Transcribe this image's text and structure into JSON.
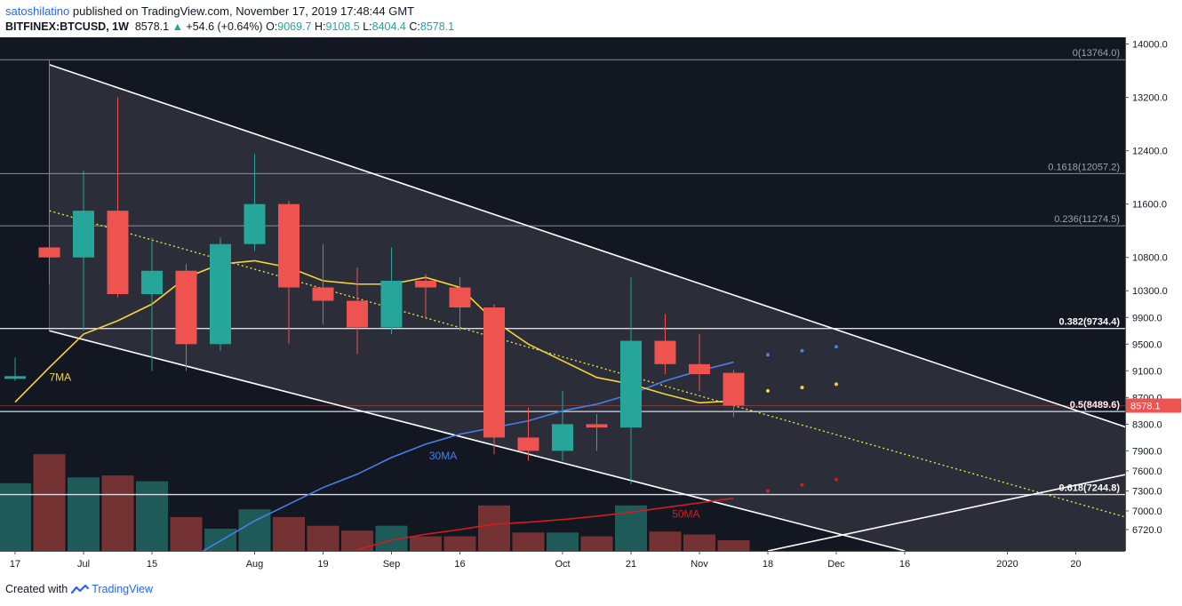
{
  "header": {
    "author": "satoshilatino",
    "published_text": "published on TradingView.com, November 17, 2019 17:48:44 GMT",
    "symbol": "BITFINEX:BTCUSD, 1W",
    "last_price": "8578.1",
    "change": "+54.6 (+0.64%)",
    "open_label": "O:",
    "open": "9069.7",
    "high_label": "H:",
    "high": "9108.5",
    "low_label": "L:",
    "low": "8404.4",
    "close_label": "C:",
    "close": "8578.1"
  },
  "footer": {
    "created_with": "Created with",
    "brand": "TradingView",
    "brand_icon": "tradingview-logo-icon"
  },
  "colors": {
    "background": "#131722",
    "up": "#26a69a",
    "down": "#ef5350",
    "ma7": "#f5d43a",
    "ma30": "#4a7ee8",
    "ma50": "#d01d1d",
    "price_tag": "#ef5350"
  },
  "chart_data": {
    "type": "candlestick",
    "ylim": [
      6400,
      14100
    ],
    "price_ticks": [
      14000,
      13200,
      12400,
      11600,
      10800,
      10300,
      9900,
      9500,
      9100,
      8700,
      8300,
      7900,
      7600,
      7300,
      7000,
      6720
    ],
    "price_tick_labels": [
      "14000.0",
      "13200.0",
      "12400.0",
      "11600.0",
      "10800.0",
      "10300.0",
      "9900.0",
      "9500.0",
      "9100.0",
      "8700.0",
      "8300.0",
      "7900.0",
      "7600.0",
      "7300.0",
      "7000.0",
      "6720.0"
    ],
    "x_ticks": [
      {
        "label": "17",
        "week": 0
      },
      {
        "label": "Jul",
        "week": 2
      },
      {
        "label": "15",
        "week": 4
      },
      {
        "label": "Aug",
        "week": 7
      },
      {
        "label": "19",
        "week": 9
      },
      {
        "label": "Sep",
        "week": 11
      },
      {
        "label": "16",
        "week": 13
      },
      {
        "label": "Oct",
        "week": 16
      },
      {
        "label": "21",
        "week": 18
      },
      {
        "label": "Nov",
        "week": 20
      },
      {
        "label": "18",
        "week": 22
      },
      {
        "label": "Dec",
        "week": 24
      },
      {
        "label": "16",
        "week": 26
      },
      {
        "label": "2020",
        "week": 29
      },
      {
        "label": "20",
        "week": 31
      }
    ],
    "candles": [
      {
        "o": 8980,
        "h": 9300,
        "l": 8950,
        "c": 9020
      },
      {
        "o": 10950,
        "h": 13764,
        "l": 10400,
        "c": 10800
      },
      {
        "o": 10800,
        "h": 12100,
        "l": 9700,
        "c": 11500
      },
      {
        "o": 11500,
        "h": 13200,
        "l": 10200,
        "c": 10250
      },
      {
        "o": 10250,
        "h": 11100,
        "l": 9100,
        "c": 10600
      },
      {
        "o": 10600,
        "h": 10700,
        "l": 9100,
        "c": 9500
      },
      {
        "o": 9500,
        "h": 11100,
        "l": 9400,
        "c": 11000
      },
      {
        "o": 11000,
        "h": 12350,
        "l": 10900,
        "c": 11600
      },
      {
        "o": 11600,
        "h": 11650,
        "l": 9500,
        "c": 10350
      },
      {
        "o": 10350,
        "h": 11000,
        "l": 9800,
        "c": 10150
      },
      {
        "o": 10150,
        "h": 10650,
        "l": 9350,
        "c": 9750
      },
      {
        "o": 9750,
        "h": 10950,
        "l": 9650,
        "c": 10450
      },
      {
        "o": 10450,
        "h": 10550,
        "l": 9900,
        "c": 10350
      },
      {
        "o": 10350,
        "h": 10500,
        "l": 9700,
        "c": 10050
      },
      {
        "o": 10050,
        "h": 10100,
        "l": 7850,
        "c": 8100
      },
      {
        "o": 8100,
        "h": 8550,
        "l": 7750,
        "c": 7900
      },
      {
        "o": 7900,
        "h": 8800,
        "l": 7750,
        "c": 8300
      },
      {
        "o": 8300,
        "h": 8450,
        "l": 7900,
        "c": 8250
      },
      {
        "o": 8250,
        "h": 10500,
        "l": 7400,
        "c": 9550
      },
      {
        "o": 9550,
        "h": 9950,
        "l": 9050,
        "c": 9200
      },
      {
        "o": 9200,
        "h": 9650,
        "l": 8800,
        "c": 9050
      },
      {
        "o": 9069.7,
        "h": 9108.5,
        "l": 8404.4,
        "c": 8578.1
      }
    ],
    "volume": [
      {
        "v": 0.7,
        "up": true
      },
      {
        "v": 1.0,
        "up": false
      },
      {
        "v": 0.76,
        "up": true
      },
      {
        "v": 0.78,
        "up": false
      },
      {
        "v": 0.72,
        "up": true
      },
      {
        "v": 0.35,
        "up": false
      },
      {
        "v": 0.23,
        "up": true
      },
      {
        "v": 0.43,
        "up": true
      },
      {
        "v": 0.35,
        "up": false
      },
      {
        "v": 0.26,
        "up": false
      },
      {
        "v": 0.21,
        "up": false
      },
      {
        "v": 0.26,
        "up": true
      },
      {
        "v": 0.15,
        "up": false
      },
      {
        "v": 0.15,
        "up": false
      },
      {
        "v": 0.47,
        "up": false
      },
      {
        "v": 0.19,
        "up": false
      },
      {
        "v": 0.19,
        "up": true
      },
      {
        "v": 0.15,
        "up": false
      },
      {
        "v": 0.47,
        "up": true
      },
      {
        "v": 0.2,
        "up": false
      },
      {
        "v": 0.17,
        "up": false
      },
      {
        "v": 0.11,
        "up": false
      }
    ],
    "ma7": {
      "label": "7MA",
      "points": [
        [
          0,
          8630
        ],
        [
          1,
          9150
        ],
        [
          2,
          9650
        ],
        [
          3,
          9850
        ],
        [
          4,
          10100
        ],
        [
          5,
          10500
        ],
        [
          6,
          10700
        ],
        [
          7,
          10750
        ],
        [
          8,
          10650
        ],
        [
          9,
          10450
        ],
        [
          10,
          10400
        ],
        [
          11,
          10400
        ],
        [
          12,
          10500
        ],
        [
          13,
          10350
        ],
        [
          14,
          9850
        ],
        [
          15,
          9500
        ],
        [
          16,
          9250
        ],
        [
          17,
          9000
        ],
        [
          18,
          8900
        ],
        [
          19,
          8750
        ],
        [
          20,
          8620
        ],
        [
          21,
          8650
        ]
      ],
      "forecast": [
        [
          22,
          8800
        ],
        [
          23,
          8850
        ],
        [
          24,
          8900
        ]
      ]
    },
    "ma30": {
      "label": "30MA",
      "points": [
        [
          5.5,
          6400
        ],
        [
          6,
          6550
        ],
        [
          7,
          6850
        ],
        [
          8,
          7100
        ],
        [
          9,
          7350
        ],
        [
          10,
          7550
        ],
        [
          11,
          7800
        ],
        [
          12,
          8000
        ],
        [
          13,
          8150
        ],
        [
          14,
          8250
        ],
        [
          15,
          8350
        ],
        [
          16,
          8500
        ],
        [
          17,
          8600
        ],
        [
          18,
          8750
        ],
        [
          19,
          8950
        ],
        [
          20,
          9100
        ],
        [
          21,
          9230
        ]
      ],
      "forecast": [
        [
          22,
          9340
        ],
        [
          23,
          9400
        ],
        [
          24,
          9460
        ]
      ]
    },
    "ma50": {
      "label": "50MA",
      "points": [
        [
          10,
          6420
        ],
        [
          11,
          6560
        ],
        [
          12,
          6650
        ],
        [
          13,
          6720
        ],
        [
          14,
          6800
        ],
        [
          15,
          6830
        ],
        [
          16,
          6870
        ],
        [
          17,
          6920
        ],
        [
          18,
          6980
        ],
        [
          19,
          7050
        ],
        [
          20,
          7120
        ],
        [
          21,
          7190
        ]
      ],
      "forecast": [
        [
          22,
          7300
        ],
        [
          23,
          7390
        ],
        [
          24,
          7470
        ]
      ]
    },
    "fibonacci": [
      {
        "label": "0(13764.0)",
        "price": 13764.0,
        "bold": false
      },
      {
        "label": "0.1618(12057.2)",
        "price": 12057.2,
        "bold": false
      },
      {
        "label": "0.236(11274.5)",
        "price": 11274.5,
        "bold": false
      },
      {
        "label": "0.382(9734.4)",
        "price": 9734.4,
        "bold": true
      },
      {
        "label": "0.5(8489.6)",
        "price": 8489.6,
        "bold": true
      },
      {
        "label": "0.618(7244.8)",
        "price": 7244.8,
        "bold": true
      }
    ],
    "channel": {
      "upper": [
        [
          1,
          13690
        ],
        [
          32.5,
          8250
        ]
      ],
      "lower": [
        [
          1,
          9700
        ],
        [
          26,
          6400
        ]
      ],
      "midline": [
        [
          1,
          11500
        ],
        [
          32.5,
          6900
        ]
      ]
    },
    "support_line": [
      [
        22,
        6400
      ],
      [
        32.5,
        7550
      ]
    ],
    "annotations": [
      "7MA",
      "30MA",
      "50MA"
    ]
  }
}
